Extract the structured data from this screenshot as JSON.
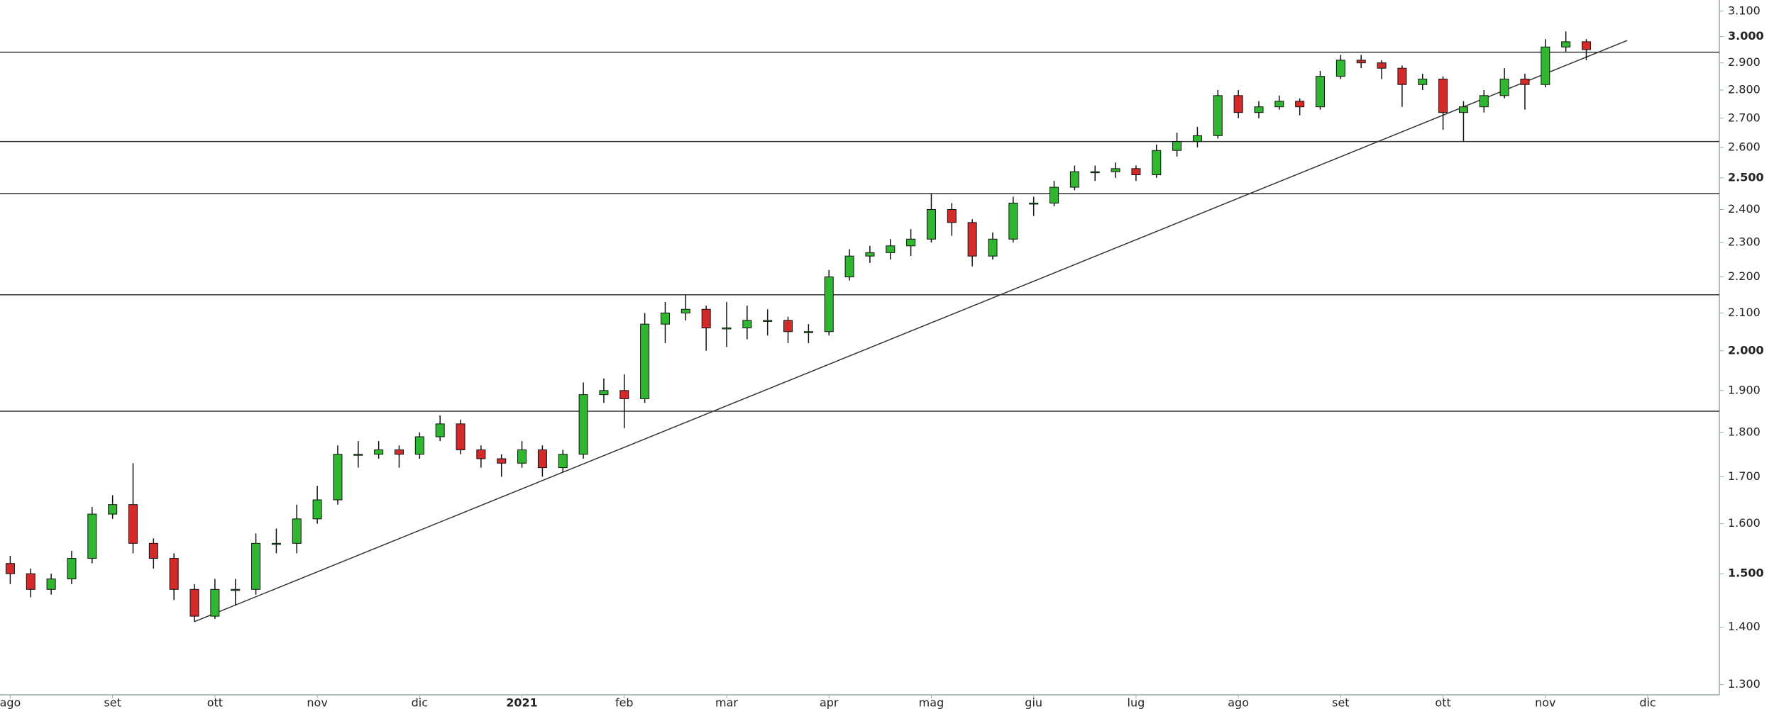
{
  "chart_data": {
    "type": "candlestick",
    "log_scale": true,
    "up_color": "#2fb82f",
    "down_color": "#d42a2a",
    "ylim": [
      1283,
      3145
    ],
    "yticks": [
      {
        "value": 1300,
        "label": "1.300"
      },
      {
        "value": 1400,
        "label": "1.400"
      },
      {
        "value": 1500,
        "label": "1.500"
      },
      {
        "value": 1600,
        "label": "1.600"
      },
      {
        "value": 1700,
        "label": "1.700"
      },
      {
        "value": 1800,
        "label": "1.800"
      },
      {
        "value": 1900,
        "label": "1.900"
      },
      {
        "value": 2000,
        "label": "2.000"
      },
      {
        "value": 2100,
        "label": "2.100"
      },
      {
        "value": 2200,
        "label": "2.200"
      },
      {
        "value": 2300,
        "label": "2.300"
      },
      {
        "value": 2400,
        "label": "2.400"
      },
      {
        "value": 2500,
        "label": "2.500"
      },
      {
        "value": 2600,
        "label": "2.600"
      },
      {
        "value": 2700,
        "label": "2.700"
      },
      {
        "value": 2800,
        "label": "2.800"
      },
      {
        "value": 2900,
        "label": "2.900"
      },
      {
        "value": 3000,
        "label": "3.000"
      },
      {
        "value": 3100,
        "label": "3.100"
      }
    ],
    "categories": [
      "ago",
      null,
      null,
      null,
      null,
      "set",
      null,
      null,
      null,
      null,
      "ott",
      null,
      null,
      null,
      null,
      "nov",
      null,
      null,
      null,
      null,
      "dic",
      null,
      null,
      null,
      null,
      "2021",
      null,
      null,
      null,
      null,
      "feb",
      null,
      null,
      null,
      null,
      "mar",
      null,
      null,
      null,
      null,
      "apr",
      null,
      null,
      null,
      null,
      "mag",
      null,
      null,
      null,
      null,
      "giu",
      null,
      null,
      null,
      null,
      "lug",
      null,
      null,
      null,
      null,
      "ago",
      null,
      null,
      null,
      null,
      "set",
      null,
      null,
      null,
      null,
      "ott",
      null,
      null,
      null,
      null,
      "nov",
      null,
      null,
      null,
      null,
      "dic",
      null,
      null,
      null
    ],
    "open": [
      1520,
      1500,
      1470,
      1490,
      1530,
      1620,
      1640,
      1560,
      1530,
      1470,
      1420,
      1470,
      1470,
      1560,
      1560,
      1610,
      1650,
      1750,
      1750,
      1760,
      1750,
      1790,
      1820,
      1760,
      1740,
      1730,
      1760,
      1720,
      1750,
      1890,
      1900,
      1880,
      2070,
      2100,
      2110,
      2060,
      2060,
      2080,
      2080,
      2050,
      2050,
      2200,
      2260,
      2270,
      2290,
      2310,
      2400,
      2360,
      2260,
      2310,
      2420,
      2420,
      2470,
      2520,
      2520,
      2530,
      2510,
      2590,
      2620,
      2640,
      2780,
      2720,
      2740,
      2760,
      2740,
      2850,
      2910,
      2900,
      2880,
      2820,
      2840,
      2720,
      2740,
      2780,
      2840,
      2820,
      2960,
      2980,
      null,
      null,
      null,
      null,
      null,
      null
    ],
    "high": [
      1535,
      1510,
      1500,
      1545,
      1635,
      1660,
      1730,
      1570,
      1540,
      1480,
      1490,
      1490,
      1580,
      1590,
      1640,
      1680,
      1770,
      1780,
      1780,
      1770,
      1800,
      1840,
      1830,
      1770,
      1750,
      1780,
      1770,
      1760,
      1920,
      1930,
      1940,
      2100,
      2130,
      2150,
      2120,
      2130,
      2120,
      2110,
      2090,
      2070,
      2220,
      2280,
      2290,
      2310,
      2340,
      2450,
      2420,
      2370,
      2330,
      2440,
      2440,
      2490,
      2540,
      2540,
      2550,
      2540,
      2610,
      2650,
      2670,
      2800,
      2800,
      2760,
      2780,
      2770,
      2870,
      2930,
      2930,
      2910,
      2890,
      2860,
      2850,
      2760,
      2800,
      2880,
      2860,
      2990,
      3020,
      2990,
      null,
      null,
      null,
      null,
      null,
      null
    ],
    "low": [
      1480,
      1455,
      1460,
      1480,
      1520,
      1610,
      1540,
      1510,
      1450,
      1410,
      1415,
      1440,
      1460,
      1540,
      1540,
      1600,
      1640,
      1720,
      1740,
      1720,
      1740,
      1780,
      1750,
      1720,
      1700,
      1720,
      1700,
      1710,
      1740,
      1870,
      1810,
      1870,
      2020,
      2080,
      2000,
      2010,
      2030,
      2040,
      2020,
      2020,
      2040,
      2190,
      2240,
      2250,
      2260,
      2300,
      2320,
      2230,
      2250,
      2300,
      2380,
      2410,
      2460,
      2490,
      2500,
      2490,
      2500,
      2570,
      2600,
      2630,
      2700,
      2700,
      2730,
      2710,
      2730,
      2840,
      2880,
      2840,
      2740,
      2800,
      2660,
      2620,
      2720,
      2770,
      2730,
      2810,
      2940,
      2910,
      null,
      null,
      null,
      null,
      null,
      null
    ],
    "close": [
      1500,
      1470,
      1490,
      1530,
      1620,
      1640,
      1560,
      1530,
      1470,
      1420,
      1470,
      1470,
      1560,
      1560,
      1610,
      1650,
      1750,
      1750,
      1760,
      1750,
      1790,
      1820,
      1760,
      1740,
      1730,
      1760,
      1720,
      1750,
      1890,
      1900,
      1880,
      2070,
      2100,
      2110,
      2060,
      2060,
      2080,
      2080,
      2050,
      2050,
      2200,
      2260,
      2270,
      2290,
      2310,
      2400,
      2360,
      2260,
      2310,
      2420,
      2420,
      2470,
      2520,
      2520,
      2530,
      2510,
      2590,
      2620,
      2640,
      2780,
      2720,
      2740,
      2760,
      2740,
      2850,
      2910,
      2900,
      2880,
      2820,
      2840,
      2720,
      2740,
      2780,
      2840,
      2820,
      2960,
      2980,
      2950,
      null,
      null,
      null,
      null,
      null,
      null
    ],
    "hlines": [
      2940,
      2620,
      2450,
      2150,
      1850
    ],
    "trendline": {
      "x": [
        9,
        79
      ],
      "y": [
        1410,
        2985
      ]
    }
  }
}
